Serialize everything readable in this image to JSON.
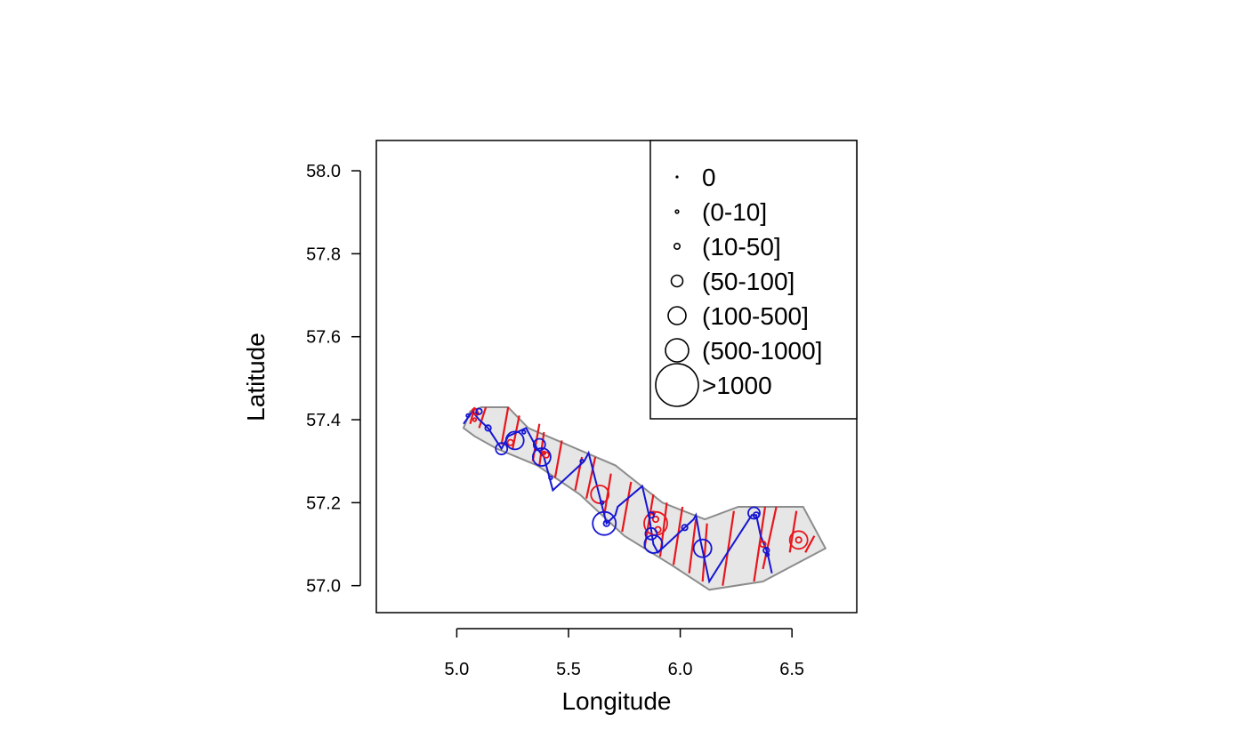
{
  "chart_data": {
    "type": "scatter",
    "title": "",
    "xlabel": "Longitude",
    "ylabel": "Latitude",
    "xlim": [
      4.64,
      6.79
    ],
    "ylim": [
      56.935,
      58.073
    ],
    "x_ticks": [
      "5.0",
      "5.5",
      "6.0",
      "6.5"
    ],
    "y_ticks": [
      "57.0",
      "57.2",
      "57.4",
      "57.6",
      "57.8",
      "58.0"
    ],
    "legend": {
      "placement": "top-right",
      "entries": [
        {
          "label": "0",
          "size_class": 0
        },
        {
          "label": "(0-10]",
          "size_class": 1
        },
        {
          "label": "(10-50]",
          "size_class": 2
        },
        {
          "label": "(50-100]",
          "size_class": 3
        },
        {
          "label": "(100-500]",
          "size_class": 4
        },
        {
          "label": "(500-1000]",
          "size_class": 5
        },
        {
          "label": ">1000",
          "size_class": 6
        }
      ]
    },
    "region_polygon": [
      [
        5.03,
        57.38
      ],
      [
        5.06,
        57.42
      ],
      [
        5.11,
        57.43
      ],
      [
        5.23,
        57.43
      ],
      [
        5.32,
        57.38
      ],
      [
        5.71,
        57.29
      ],
      [
        5.92,
        57.2
      ],
      [
        6.11,
        57.16
      ],
      [
        6.26,
        57.19
      ],
      [
        6.55,
        57.19
      ],
      [
        6.65,
        57.09
      ],
      [
        6.37,
        57.01
      ],
      [
        6.13,
        56.99
      ],
      [
        5.96,
        57.05
      ],
      [
        5.75,
        57.12
      ],
      [
        5.55,
        57.22
      ],
      [
        5.36,
        57.29
      ],
      [
        5.18,
        57.33
      ],
      [
        5.08,
        57.36
      ],
      [
        5.03,
        57.38
      ]
    ],
    "series": [
      {
        "name": "red transect",
        "color": "#e8161c",
        "segments": [
          [
            [
              5.06,
              57.39
            ],
            [
              5.08,
              57.43
            ]
          ],
          [
            [
              5.1,
              57.38
            ],
            [
              5.13,
              57.43
            ]
          ],
          [
            [
              5.2,
              57.34
            ],
            [
              5.23,
              57.43
            ]
          ],
          [
            [
              5.25,
              57.33
            ],
            [
              5.28,
              57.41
            ]
          ],
          [
            [
              5.34,
              57.3
            ],
            [
              5.37,
              57.39
            ]
          ],
          [
            [
              5.37,
              57.29
            ],
            [
              5.39,
              57.37
            ]
          ],
          [
            [
              5.44,
              57.26
            ],
            [
              5.47,
              57.35
            ]
          ],
          [
            [
              5.53,
              57.23
            ],
            [
              5.56,
              57.31
            ]
          ],
          [
            [
              5.58,
              57.21
            ],
            [
              5.62,
              57.31
            ]
          ],
          [
            [
              5.66,
              57.17
            ],
            [
              5.69,
              57.27
            ]
          ],
          [
            [
              5.74,
              57.13
            ],
            [
              5.78,
              57.25
            ]
          ],
          [
            [
              5.84,
              57.09
            ],
            [
              5.88,
              57.22
            ]
          ],
          [
            [
              5.91,
              57.07
            ],
            [
              5.94,
              57.2
            ]
          ],
          [
            [
              5.97,
              57.05
            ],
            [
              6.01,
              57.19
            ]
          ],
          [
            [
              6.04,
              57.03
            ],
            [
              6.07,
              57.16
            ]
          ],
          [
            [
              6.1,
              57.01
            ],
            [
              6.12,
              57.15
            ]
          ],
          [
            [
              6.19,
              57.0
            ],
            [
              6.24,
              57.18
            ]
          ],
          [
            [
              6.33,
              57.01
            ],
            [
              6.38,
              57.19
            ]
          ],
          [
            [
              6.37,
              57.04
            ],
            [
              6.43,
              57.19
            ]
          ],
          [
            [
              6.49,
              57.08
            ],
            [
              6.52,
              57.18
            ]
          ],
          [
            [
              6.56,
              57.08
            ],
            [
              6.6,
              57.12
            ]
          ]
        ],
        "points": [
          {
            "x": 5.08,
            "y": 57.42,
            "size_class": 2
          },
          {
            "x": 5.09,
            "y": 57.415,
            "size_class": 1
          },
          {
            "x": 5.08,
            "y": 57.4,
            "size_class": 1
          },
          {
            "x": 5.24,
            "y": 57.345,
            "size_class": 2
          },
          {
            "x": 5.4,
            "y": 57.315,
            "size_class": 2
          },
          {
            "x": 5.39,
            "y": 57.32,
            "size_class": 1
          },
          {
            "x": 5.64,
            "y": 57.22,
            "size_class": 4
          },
          {
            "x": 5.89,
            "y": 57.15,
            "size_class": 5
          },
          {
            "x": 5.89,
            "y": 57.16,
            "size_class": 2
          },
          {
            "x": 5.9,
            "y": 57.135,
            "size_class": 2
          },
          {
            "x": 5.88,
            "y": 57.175,
            "size_class": 1
          },
          {
            "x": 6.37,
            "y": 57.1,
            "size_class": 2
          },
          {
            "x": 6.53,
            "y": 57.11,
            "size_class": 4
          },
          {
            "x": 6.53,
            "y": 57.11,
            "size_class": 2
          }
        ]
      },
      {
        "name": "blue transect",
        "color": "#1515d4",
        "path": [
          [
            5.03,
            57.39
          ],
          [
            5.07,
            57.42
          ],
          [
            5.1,
            57.4
          ],
          [
            5.14,
            57.38
          ],
          [
            5.2,
            57.33
          ],
          [
            5.23,
            57.36
          ],
          [
            5.31,
            57.38
          ],
          [
            5.36,
            57.33
          ],
          [
            5.39,
            57.31
          ],
          [
            5.43,
            57.23
          ],
          [
            5.57,
            57.3
          ],
          [
            5.59,
            57.32
          ],
          [
            5.67,
            57.15
          ],
          [
            5.71,
            57.17
          ],
          [
            5.72,
            57.19
          ],
          [
            5.83,
            57.24
          ],
          [
            5.86,
            57.17
          ],
          [
            5.88,
            57.1
          ],
          [
            5.9,
            57.08
          ],
          [
            6.06,
            57.16
          ],
          [
            6.07,
            57.17
          ],
          [
            6.09,
            57.11
          ],
          [
            6.13,
            57.01
          ],
          [
            6.2,
            57.07
          ],
          [
            6.32,
            57.17
          ],
          [
            6.34,
            57.17
          ],
          [
            6.36,
            57.12
          ],
          [
            6.39,
            57.08
          ],
          [
            6.41,
            57.03
          ]
        ],
        "points": [
          {
            "x": 5.05,
            "y": 57.41,
            "size_class": 1
          },
          {
            "x": 5.1,
            "y": 57.42,
            "size_class": 2
          },
          {
            "x": 5.14,
            "y": 57.38,
            "size_class": 2
          },
          {
            "x": 5.2,
            "y": 57.33,
            "size_class": 3
          },
          {
            "x": 5.26,
            "y": 57.35,
            "size_class": 4
          },
          {
            "x": 5.3,
            "y": 57.37,
            "size_class": 1
          },
          {
            "x": 5.37,
            "y": 57.34,
            "size_class": 3
          },
          {
            "x": 5.38,
            "y": 57.31,
            "size_class": 4
          },
          {
            "x": 5.42,
            "y": 57.26,
            "size_class": 1
          },
          {
            "x": 5.56,
            "y": 57.3,
            "size_class": 1
          },
          {
            "x": 5.66,
            "y": 57.15,
            "size_class": 5
          },
          {
            "x": 5.67,
            "y": 57.15,
            "size_class": 2
          },
          {
            "x": 5.65,
            "y": 57.2,
            "size_class": 1
          },
          {
            "x": 5.87,
            "y": 57.17,
            "size_class": 2
          },
          {
            "x": 5.87,
            "y": 57.125,
            "size_class": 3
          },
          {
            "x": 5.88,
            "y": 57.1,
            "size_class": 4
          },
          {
            "x": 6.02,
            "y": 57.14,
            "size_class": 2
          },
          {
            "x": 6.1,
            "y": 57.09,
            "size_class": 4
          },
          {
            "x": 6.33,
            "y": 57.175,
            "size_class": 3
          },
          {
            "x": 6.34,
            "y": 57.17,
            "size_class": 2
          },
          {
            "x": 6.385,
            "y": 57.085,
            "size_class": 2
          },
          {
            "x": 6.39,
            "y": 57.075,
            "size_class": 1
          }
        ]
      }
    ]
  }
}
